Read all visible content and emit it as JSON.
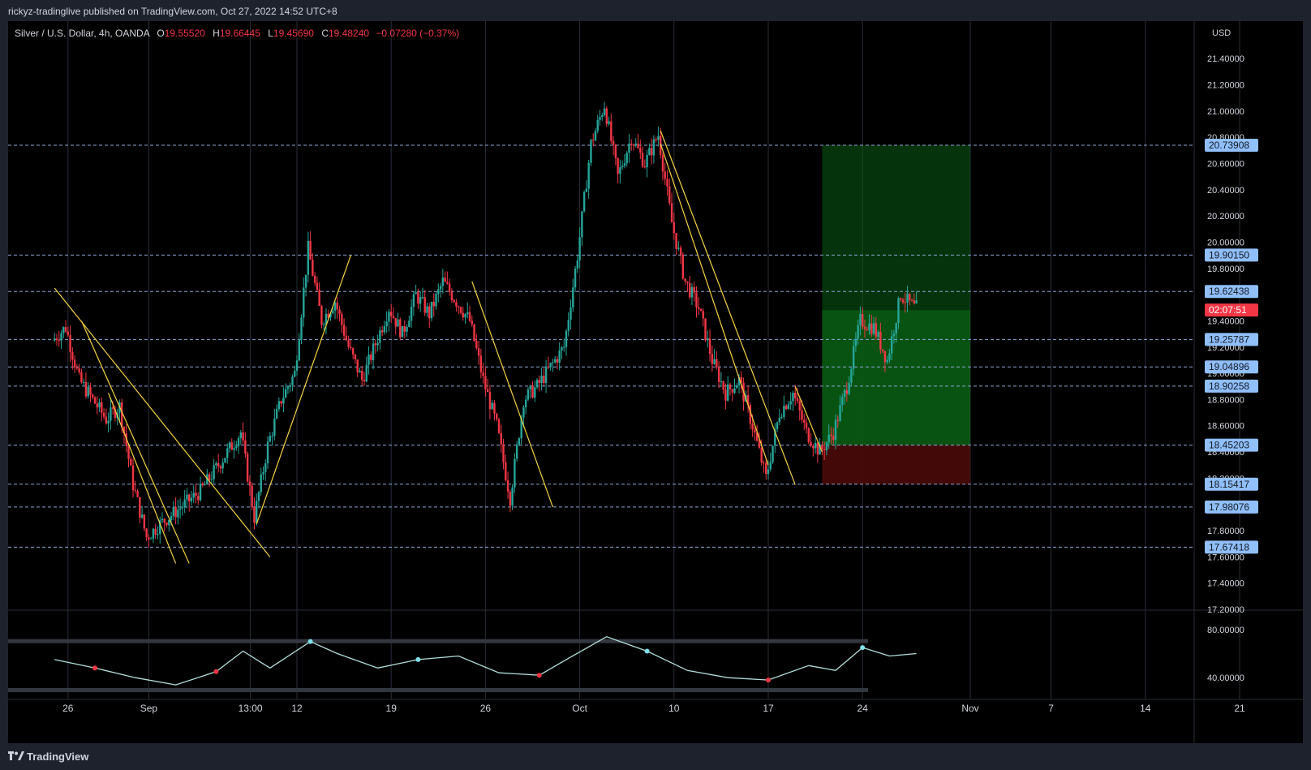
{
  "header": {
    "publisher_line": "rickyz-tradinglive published on TradingView.com, Oct 27, 2022 14:52 UTC+8"
  },
  "legend": {
    "symbol": "Silver / U.S. Dollar, 4h, OANDA",
    "o_label": "O",
    "o_value": "19.55520",
    "h_label": "H",
    "h_value": "19.66445",
    "l_label": "L",
    "l_value": "19.45690",
    "c_label": "C",
    "c_value": "19.48240",
    "change": "−0.07280 (−0.37%)"
  },
  "footer": {
    "brand": "TradingView",
    "logo_icon": "tradingview-logo-icon"
  },
  "colors": {
    "up": "#26a69a",
    "down": "#f23645",
    "trendline": "#f5d442",
    "hline": "#8ea6d8",
    "label_bg": "#90bff9",
    "label_text": "#131722",
    "countdown_bg": "#f23645",
    "profit_zone": "#0a5c14",
    "loss_zone": "#4a0a0a"
  },
  "chart_data": [
    {
      "type": "candlestick",
      "title": "Silver / U.S. Dollar, 4h, OANDA",
      "currency_label": "USD",
      "ylim": [
        17.2,
        21.55
      ],
      "y_ticks": [
        21.4,
        21.2,
        21.0,
        20.8,
        20.6,
        20.4,
        20.2,
        20.0,
        19.8,
        19.6,
        19.4,
        19.2,
        19.0,
        18.8,
        18.6,
        18.4,
        18.2,
        18.0,
        17.8,
        17.6,
        17.4,
        17.2
      ],
      "y_tick_labels": [
        "21.40000",
        "21.20000",
        "21.00000",
        "20.80000",
        "20.60000",
        "20.40000",
        "20.20000",
        "20.00000",
        "19.80000",
        "19.60000",
        "19.40000",
        "19.20000",
        "19.00000",
        "18.80000",
        "18.60000",
        "18.40000",
        "18.20000",
        "18.00000",
        "17.80000",
        "17.60000",
        "17.40000",
        "17.20000"
      ],
      "x_labels": [
        "26",
        "Sep",
        "13:00",
        "12",
        "19",
        "26",
        "Oct",
        "10",
        "17",
        "24",
        "Nov",
        "7",
        "14",
        "21"
      ],
      "x_label_dates": [
        "2022-08-26",
        "2022-09-01",
        "2022-09-08 13:00",
        "2022-09-12",
        "2022-09-19",
        "2022-09-26",
        "2022-10-03",
        "2022-10-10",
        "2022-10-17",
        "2022-10-24",
        "2022-11-01",
        "2022-11-07",
        "2022-11-14",
        "2022-11-21"
      ],
      "price_path": [
        {
          "date": "2022-08-25",
          "price": 19.25
        },
        {
          "date": "2022-08-26",
          "price": 19.35
        },
        {
          "date": "2022-08-27",
          "price": 18.95
        },
        {
          "date": "2022-08-29",
          "price": 18.65
        },
        {
          "date": "2022-08-30",
          "price": 18.75
        },
        {
          "date": "2022-08-31",
          "price": 18.15
        },
        {
          "date": "2022-09-01",
          "price": 17.75
        },
        {
          "date": "2022-09-02",
          "price": 17.85
        },
        {
          "date": "2022-09-05",
          "price": 18.1
        },
        {
          "date": "2022-09-07",
          "price": 18.4
        },
        {
          "date": "2022-09-08",
          "price": 18.55
        },
        {
          "date": "2022-09-09",
          "price": 17.9
        },
        {
          "date": "2022-09-10",
          "price": 18.45
        },
        {
          "date": "2022-09-11",
          "price": 18.8
        },
        {
          "date": "2022-09-12",
          "price": 19.0
        },
        {
          "date": "2022-09-13",
          "price": 19.95
        },
        {
          "date": "2022-09-14",
          "price": 19.4
        },
        {
          "date": "2022-09-15",
          "price": 19.55
        },
        {
          "date": "2022-09-16",
          "price": 19.2
        },
        {
          "date": "2022-09-17",
          "price": 18.95
        },
        {
          "date": "2022-09-19",
          "price": 19.5
        },
        {
          "date": "2022-09-20",
          "price": 19.3
        },
        {
          "date": "2022-09-21",
          "price": 19.6
        },
        {
          "date": "2022-09-22",
          "price": 19.45
        },
        {
          "date": "2022-09-23",
          "price": 19.7
        },
        {
          "date": "2022-09-25",
          "price": 19.4
        },
        {
          "date": "2022-09-26",
          "price": 18.95
        },
        {
          "date": "2022-09-27",
          "price": 18.6
        },
        {
          "date": "2022-09-28",
          "price": 18.05
        },
        {
          "date": "2022-09-29",
          "price": 18.8
        },
        {
          "date": "2022-09-30",
          "price": 18.9
        },
        {
          "date": "2022-10-02",
          "price": 19.2
        },
        {
          "date": "2022-10-03",
          "price": 19.9
        },
        {
          "date": "2022-10-04",
          "price": 20.75
        },
        {
          "date": "2022-10-05",
          "price": 21.05
        },
        {
          "date": "2022-10-06",
          "price": 20.5
        },
        {
          "date": "2022-10-07",
          "price": 20.8
        },
        {
          "date": "2022-10-08",
          "price": 20.6
        },
        {
          "date": "2022-10-09",
          "price": 20.82
        },
        {
          "date": "2022-10-10",
          "price": 20.15
        },
        {
          "date": "2022-10-11",
          "price": 19.7
        },
        {
          "date": "2022-10-12",
          "price": 19.5
        },
        {
          "date": "2022-10-13",
          "price": 19.1
        },
        {
          "date": "2022-10-14",
          "price": 18.85
        },
        {
          "date": "2022-10-15",
          "price": 18.95
        },
        {
          "date": "2022-10-16",
          "price": 18.6
        },
        {
          "date": "2022-10-17",
          "price": 18.2
        },
        {
          "date": "2022-10-18",
          "price": 18.7
        },
        {
          "date": "2022-10-19",
          "price": 18.85
        },
        {
          "date": "2022-10-20",
          "price": 18.55
        },
        {
          "date": "2022-10-21",
          "price": 18.4
        },
        {
          "date": "2022-10-22",
          "price": 18.55
        },
        {
          "date": "2022-10-23",
          "price": 18.9
        },
        {
          "date": "2022-10-24",
          "price": 19.4
        },
        {
          "date": "2022-10-25",
          "price": 19.35
        },
        {
          "date": "2022-10-26",
          "price": 19.1
        },
        {
          "date": "2022-10-27",
          "price": 19.6
        },
        {
          "date": "2022-10-28",
          "price": 19.5
        }
      ],
      "horizontal_levels": [
        {
          "value": 20.73908,
          "label": "20.73908"
        },
        {
          "value": 19.9015,
          "label": "19.90150"
        },
        {
          "value": 19.62438,
          "label": "19.62438"
        },
        {
          "value": 19.25787,
          "label": "19.25787"
        },
        {
          "value": 19.04896,
          "label": "19.04896"
        },
        {
          "value": 18.90258,
          "label": "18.90258"
        },
        {
          "value": 18.45203,
          "label": "18.45203"
        },
        {
          "value": 18.15417,
          "label": "18.15417"
        },
        {
          "value": 17.98076,
          "label": "17.98076"
        },
        {
          "value": 17.67418,
          "label": "17.67418"
        }
      ],
      "countdown": {
        "value": 19.4824,
        "label": "02:07:51"
      },
      "position_tool": {
        "start": "2022-10-21",
        "end": "2022-11-01",
        "entry": 18.45203,
        "target": 20.73908,
        "stop": 18.15417,
        "current": 19.4824
      },
      "trendlines": [
        {
          "x1": "2022-08-25",
          "y1": 19.65,
          "x2": "2022-09-10",
          "y2": 17.6
        },
        {
          "x1": "2022-08-27",
          "y1": 19.4,
          "x2": "2022-09-04",
          "y2": 17.55
        },
        {
          "x1": "2022-08-29",
          "y1": 18.85,
          "x2": "2022-09-03",
          "y2": 17.55
        },
        {
          "x1": "2022-09-09",
          "y1": 17.85,
          "x2": "2022-09-16",
          "y2": 19.9
        },
        {
          "x1": "2022-09-25",
          "y1": 19.7,
          "x2": "2022-10-01",
          "y2": 17.98
        },
        {
          "x1": "2022-10-09",
          "y1": 20.85,
          "x2": "2022-10-19",
          "y2": 18.15
        },
        {
          "x1": "2022-10-09",
          "y1": 20.75,
          "x2": "2022-10-17",
          "y2": 18.3
        },
        {
          "x1": "2022-10-19",
          "y1": 18.9,
          "x2": "2022-10-21",
          "y2": 18.4
        }
      ]
    },
    {
      "type": "oscillator",
      "ylim": [
        30,
        90
      ],
      "y_ticks": [
        80,
        40
      ],
      "y_tick_labels": [
        "80.00000",
        "40.00000"
      ],
      "band_upper": 70,
      "band_lower": 30,
      "values": [
        {
          "date": "2022-08-25",
          "value": 55
        },
        {
          "date": "2022-08-28",
          "value": 48
        },
        {
          "date": "2022-08-31",
          "value": 40
        },
        {
          "date": "2022-09-03",
          "value": 34
        },
        {
          "date": "2022-09-06",
          "value": 45
        },
        {
          "date": "2022-09-08",
          "value": 62
        },
        {
          "date": "2022-09-10",
          "value": 48
        },
        {
          "date": "2022-09-13",
          "value": 70
        },
        {
          "date": "2022-09-15",
          "value": 60
        },
        {
          "date": "2022-09-18",
          "value": 48
        },
        {
          "date": "2022-09-21",
          "value": 55
        },
        {
          "date": "2022-09-24",
          "value": 58
        },
        {
          "date": "2022-09-27",
          "value": 44
        },
        {
          "date": "2022-09-30",
          "value": 42
        },
        {
          "date": "2022-10-02",
          "value": 55
        },
        {
          "date": "2022-10-05",
          "value": 74
        },
        {
          "date": "2022-10-08",
          "value": 62
        },
        {
          "date": "2022-10-11",
          "value": 46
        },
        {
          "date": "2022-10-14",
          "value": 40
        },
        {
          "date": "2022-10-17",
          "value": 38
        },
        {
          "date": "2022-10-20",
          "value": 50
        },
        {
          "date": "2022-10-22",
          "value": 46
        },
        {
          "date": "2022-10-24",
          "value": 65
        },
        {
          "date": "2022-10-26",
          "value": 58
        },
        {
          "date": "2022-10-28",
          "value": 60
        }
      ]
    }
  ]
}
